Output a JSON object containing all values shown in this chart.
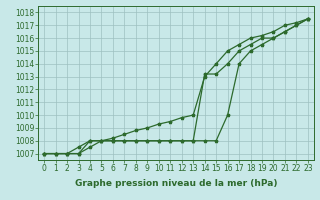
{
  "x": [
    0,
    1,
    2,
    3,
    4,
    5,
    6,
    7,
    8,
    9,
    10,
    11,
    12,
    13,
    14,
    15,
    16,
    17,
    18,
    19,
    20,
    21,
    22,
    23
  ],
  "series1": [
    1007,
    1007,
    1007,
    1007,
    1007.5,
    1008,
    1008.2,
    1008.5,
    1008.8,
    1009,
    1009.3,
    1009.5,
    1009.8,
    1010,
    1013,
    1014,
    1015,
    1015.5,
    1016,
    1016.2,
    1016.5,
    1017,
    1017.2,
    1017.5
  ],
  "series2": [
    1007,
    1007,
    1007,
    1007,
    1008,
    1008,
    1008,
    1008,
    1008,
    1008,
    1008,
    1008,
    1008,
    1008,
    1008,
    1008,
    1010,
    1014,
    1015,
    1015.5,
    1016,
    1016.5,
    1017,
    1017.5
  ],
  "series3": [
    1007,
    1007,
    1007,
    1007.5,
    1008,
    1008,
    1008,
    1008,
    1008,
    1008,
    1008,
    1008,
    1008,
    1008,
    1013.2,
    1013.2,
    1014,
    1015,
    1015.5,
    1016,
    1016,
    1016.5,
    1017,
    1017.5
  ],
  "xlim": [
    -0.5,
    23.5
  ],
  "ylim": [
    1006.5,
    1018.5
  ],
  "yticks": [
    1007,
    1008,
    1009,
    1010,
    1011,
    1012,
    1013,
    1014,
    1015,
    1016,
    1017,
    1018
  ],
  "xticks": [
    0,
    1,
    2,
    3,
    4,
    5,
    6,
    7,
    8,
    9,
    10,
    11,
    12,
    13,
    14,
    15,
    16,
    17,
    18,
    19,
    20,
    21,
    22,
    23
  ],
  "xlabel": "Graphe pression niveau de la mer (hPa)",
  "line_color": "#2d6a2d",
  "bg_color": "#c8e8e8",
  "grid_color": "#9ec0c0",
  "marker": "*",
  "marker_size": 2.5,
  "line_width": 0.9,
  "xlabel_fontsize": 6.5,
  "tick_fontsize": 5.5
}
